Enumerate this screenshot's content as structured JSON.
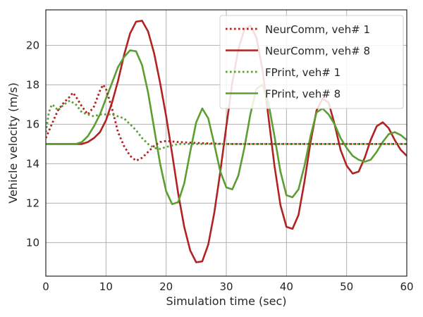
{
  "chart_data": {
    "type": "line",
    "xlabel": "Simulation time (sec)",
    "ylabel": "Vehicle velocity (m/s)",
    "xlim": [
      0,
      60
    ],
    "ylim": [
      8.3,
      21.8
    ],
    "x_ticks": [
      0,
      10,
      20,
      30,
      40,
      50,
      60
    ],
    "y_ticks": [
      10,
      12,
      14,
      16,
      18,
      20
    ],
    "grid": true,
    "legend_position": "top-right",
    "series": [
      {
        "name": "NeurComm, veh# 1",
        "color": "#b22222",
        "dash": "dotted",
        "x": [
          0,
          1,
          2,
          3,
          4,
          4.5,
          5,
          6,
          7,
          8,
          9,
          9.5,
          10,
          11,
          12,
          13,
          14,
          15,
          16,
          17,
          18,
          19,
          20,
          22,
          25,
          30,
          40,
          50,
          60
        ],
        "y": [
          15.3,
          16.0,
          16.7,
          17.1,
          17.4,
          17.6,
          17.4,
          16.9,
          16.5,
          16.9,
          17.7,
          18.0,
          17.8,
          16.8,
          15.6,
          14.9,
          14.4,
          14.15,
          14.3,
          14.6,
          14.9,
          15.1,
          15.15,
          15.1,
          15.05,
          15.0,
          15.0,
          15.0,
          15.0
        ]
      },
      {
        "name": "NeurComm, veh# 8",
        "color": "#b22222",
        "dash": "solid",
        "x": [
          0,
          3,
          6,
          7,
          8,
          9,
          10,
          11,
          12,
          13,
          14,
          15,
          16,
          17,
          18,
          19,
          20,
          21,
          22,
          23,
          24,
          25,
          26,
          27,
          28,
          29,
          30,
          31,
          32,
          33,
          34,
          35,
          36,
          37,
          38,
          39,
          40,
          41,
          42,
          43,
          44,
          45,
          46,
          47,
          48,
          49,
          50,
          51,
          52,
          53,
          54,
          55,
          56,
          57,
          58,
          59,
          60
        ],
        "y": [
          15.0,
          15.0,
          15.0,
          15.1,
          15.3,
          15.6,
          16.2,
          17.1,
          18.2,
          19.5,
          20.6,
          21.2,
          21.25,
          20.7,
          19.6,
          18.1,
          16.4,
          14.5,
          12.5,
          10.8,
          9.6,
          9.0,
          9.05,
          9.9,
          11.5,
          13.6,
          15.9,
          18.1,
          19.8,
          20.8,
          21.0,
          20.4,
          18.8,
          16.4,
          13.9,
          11.9,
          10.8,
          10.7,
          11.4,
          13.1,
          15.1,
          16.7,
          17.3,
          17.1,
          16.0,
          14.7,
          13.9,
          13.5,
          13.6,
          14.3,
          15.2,
          15.9,
          16.1,
          15.8,
          15.2,
          14.7,
          14.4
        ]
      },
      {
        "name": "FPrint, veh# 1",
        "color": "#5c9e31",
        "dash": "dotted",
        "x": [
          0,
          0.5,
          1,
          1.5,
          2,
          3,
          4,
          5,
          6,
          7,
          8,
          9,
          10,
          11,
          12,
          13,
          14,
          15,
          16,
          17,
          18,
          19,
          20,
          22,
          25,
          30,
          40,
          50,
          60
        ],
        "y": [
          15.6,
          16.6,
          17.0,
          16.9,
          16.7,
          17.0,
          17.2,
          17.0,
          16.6,
          16.5,
          16.4,
          16.5,
          16.5,
          16.5,
          16.4,
          16.3,
          16.0,
          15.7,
          15.3,
          15.0,
          14.8,
          14.75,
          14.85,
          15.0,
          15.0,
          15.0,
          15.0,
          15.0,
          15.0
        ]
      },
      {
        "name": "FPrint, veh# 8",
        "color": "#5c9e31",
        "dash": "solid",
        "x": [
          0,
          3,
          5,
          6,
          7,
          8,
          9,
          10,
          11,
          12,
          13,
          14,
          15,
          16,
          17,
          18,
          19,
          20,
          21,
          22,
          23,
          24,
          25,
          26,
          27,
          28,
          29,
          30,
          31,
          32,
          33,
          34,
          35,
          36,
          37,
          38,
          39,
          40,
          41,
          42,
          43,
          44,
          45,
          46,
          47,
          48,
          49,
          50,
          51,
          52,
          53,
          54,
          55,
          56,
          57,
          58,
          59,
          60
        ],
        "y": [
          15.0,
          15.0,
          15.0,
          15.1,
          15.4,
          15.9,
          16.5,
          17.3,
          18.1,
          18.9,
          19.4,
          19.75,
          19.7,
          19.0,
          17.6,
          15.8,
          14.0,
          12.6,
          11.95,
          12.05,
          13.0,
          14.6,
          16.1,
          16.8,
          16.3,
          15.0,
          13.6,
          12.8,
          12.7,
          13.4,
          14.8,
          16.5,
          17.8,
          18.0,
          17.1,
          15.4,
          13.6,
          12.4,
          12.3,
          12.7,
          13.9,
          15.4,
          16.6,
          16.8,
          16.5,
          16.0,
          15.3,
          14.8,
          14.4,
          14.2,
          14.1,
          14.2,
          14.6,
          15.1,
          15.5,
          15.6,
          15.45,
          15.2
        ]
      }
    ]
  }
}
